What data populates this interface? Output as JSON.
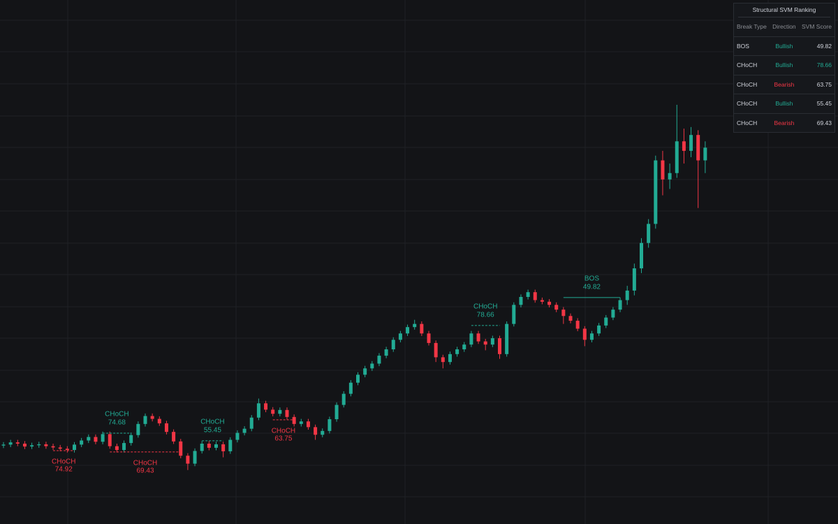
{
  "chart_data": {
    "type": "candlestick",
    "ylim": [
      1.5,
      166.5
    ],
    "up_color": "#22ab94",
    "down_color": "#f23645",
    "open": [
      26.2,
      26.5,
      27.2,
      26.8,
      25.9,
      26.3,
      26.6,
      26.0,
      25.6,
      25.2,
      24.8,
      26.5,
      27.8,
      28.9,
      27.4,
      29.8,
      26.0,
      24.8,
      27.0,
      29.5,
      33.0,
      35.5,
      34.6,
      33.2,
      30.5,
      27.5,
      23.0,
      20.5,
      24.5,
      26.8,
      25.5,
      26.6,
      24.4,
      28.0,
      30.2,
      31.5,
      35.0,
      39.5,
      37.5,
      36.2,
      37.4,
      35.2,
      33.0,
      33.8,
      32.0,
      29.6,
      30.8,
      34.5,
      39.0,
      42.5,
      46.0,
      48.5,
      50.5,
      52.0,
      54.5,
      56.5,
      59.5,
      61.5,
      63.5,
      64.5,
      61.5,
      58.5,
      54.0,
      52.5,
      55.0,
      56.5,
      58.0,
      61.5,
      59.0,
      58.0,
      60.0,
      55.0,
      64.5,
      70.5,
      73.0,
      74.5,
      72.0,
      71.5,
      70.5,
      69.0,
      67.0,
      65.5,
      63.0,
      59.5,
      61.5,
      64.0,
      66.5,
      69.0,
      72.0,
      75.0,
      82.0,
      90.0,
      96.0,
      116.0,
      110.0,
      112.0,
      122.0,
      119.0,
      124.0,
      116.0
    ],
    "high": [
      27.3,
      28.0,
      28.0,
      27.6,
      27.1,
      27.4,
      27.4,
      26.8,
      26.4,
      26.0,
      27.3,
      28.6,
      29.7,
      29.7,
      30.6,
      30.6,
      26.8,
      27.8,
      30.3,
      33.8,
      36.3,
      36.3,
      35.4,
      34.0,
      31.3,
      28.3,
      23.8,
      25.3,
      27.6,
      27.6,
      27.4,
      27.4,
      28.8,
      31.0,
      32.3,
      35.8,
      41.0,
      40.3,
      38.3,
      38.2,
      38.2,
      36.0,
      34.6,
      34.6,
      32.8,
      31.6,
      35.3,
      39.8,
      43.3,
      46.8,
      49.3,
      51.3,
      52.8,
      55.3,
      57.3,
      60.3,
      62.3,
      64.3,
      65.8,
      65.3,
      62.3,
      59.3,
      54.8,
      55.8,
      57.3,
      58.8,
      62.3,
      62.3,
      59.8,
      60.8,
      60.8,
      65.3,
      71.3,
      73.8,
      75.3,
      75.3,
      72.8,
      72.3,
      71.3,
      69.8,
      67.8,
      66.3,
      63.8,
      62.3,
      64.8,
      67.3,
      69.8,
      72.8,
      76.5,
      83.5,
      91.5,
      97.5,
      117.5,
      119.0,
      115.0,
      133.5,
      126.0,
      126.5,
      125.5,
      122.0
    ],
    "low": [
      25.4,
      25.7,
      26.0,
      25.1,
      25.1,
      25.5,
      25.2,
      24.8,
      24.4,
      24.0,
      24.0,
      25.7,
      27.0,
      26.6,
      26.6,
      25.2,
      24.0,
      24.0,
      26.2,
      28.7,
      32.2,
      33.8,
      32.4,
      29.7,
      26.7,
      22.2,
      18.5,
      19.7,
      23.7,
      24.7,
      24.7,
      22.5,
      23.6,
      27.2,
      29.4,
      30.7,
      34.2,
      36.7,
      35.4,
      35.4,
      34.4,
      32.2,
      32.2,
      31.2,
      28.0,
      28.8,
      30.0,
      33.7,
      38.2,
      41.7,
      45.2,
      47.7,
      49.7,
      51.2,
      53.7,
      55.7,
      58.7,
      60.7,
      62.7,
      60.7,
      57.7,
      52.5,
      50.5,
      51.7,
      54.2,
      55.7,
      57.2,
      58.2,
      56.2,
      57.2,
      53.5,
      54.2,
      63.7,
      69.7,
      72.2,
      71.2,
      70.7,
      69.7,
      68.2,
      64.5,
      64.7,
      62.2,
      57.5,
      58.7,
      60.7,
      63.2,
      65.7,
      68.2,
      70.5,
      73.5,
      80.5,
      88.5,
      94.5,
      105.0,
      107.0,
      110.5,
      115.0,
      117.0,
      101.0,
      112.0
    ],
    "close": [
      26.5,
      27.2,
      26.8,
      25.9,
      26.3,
      26.6,
      26.0,
      25.6,
      25.2,
      24.8,
      26.5,
      27.8,
      28.9,
      27.4,
      29.8,
      26.0,
      24.8,
      27.0,
      29.5,
      33.0,
      35.5,
      34.6,
      33.2,
      30.5,
      27.5,
      23.0,
      20.5,
      24.5,
      26.8,
      25.5,
      26.6,
      24.4,
      28.0,
      30.2,
      31.5,
      35.0,
      39.5,
      37.5,
      36.2,
      37.4,
      35.2,
      33.0,
      33.8,
      32.0,
      29.6,
      30.8,
      34.5,
      39.0,
      42.5,
      46.0,
      48.5,
      50.5,
      52.0,
      54.5,
      56.5,
      59.5,
      61.5,
      63.5,
      64.5,
      61.5,
      58.5,
      54.0,
      52.5,
      55.0,
      56.5,
      58.0,
      61.5,
      59.0,
      58.0,
      60.0,
      55.0,
      64.5,
      70.5,
      73.0,
      74.5,
      72.0,
      71.5,
      70.5,
      69.0,
      67.0,
      65.5,
      63.0,
      59.5,
      61.5,
      64.0,
      66.5,
      69.0,
      72.0,
      75.0,
      82.0,
      90.0,
      96.0,
      116.0,
      110.0,
      112.0,
      122.0,
      119.0,
      124.0,
      116.0,
      120.0
    ],
    "direction_colors": {
      "Bullish": "#22ab94",
      "Bearish": "#f23645"
    },
    "annotations": [
      {
        "kind": "CHoCH",
        "direction": "Bearish",
        "score": 74.92,
        "level": 24.6,
        "start": 7,
        "end": 10,
        "line_style": "dashed"
      },
      {
        "kind": "CHoCH",
        "direction": "Bullish",
        "score": 74.68,
        "level": 30.1,
        "start": 14,
        "end": 18,
        "line_style": "dashed"
      },
      {
        "kind": "CHoCH",
        "direction": "Bearish",
        "score": 69.43,
        "level": 24.2,
        "start": 15,
        "end": 25,
        "line_style": "dashed"
      },
      {
        "kind": "CHoCH",
        "direction": "Bullish",
        "score": 55.45,
        "level": 27.7,
        "start": 28,
        "end": 31,
        "line_style": "dashed"
      },
      {
        "kind": "CHoCH",
        "direction": "Bearish",
        "score": 63.75,
        "level": 34.3,
        "start": 38,
        "end": 41,
        "line_style": "dashed"
      },
      {
        "kind": "CHoCH",
        "direction": "Bullish",
        "score": 78.66,
        "level": 64.0,
        "start": 66,
        "end": 70,
        "line_style": "dashed"
      },
      {
        "kind": "BOS",
        "direction": "Bullish",
        "score": 49.82,
        "level": 72.8,
        "start": 79,
        "end": 87,
        "line_style": "solid"
      }
    ]
  },
  "ranking_table": {
    "title": "Structural SVM Ranking",
    "columns": [
      "Break Type",
      "Direction",
      "SVM Score"
    ],
    "rows": [
      [
        "BOS",
        "Bullish",
        49.82
      ],
      [
        "CHoCH",
        "Bullish",
        78.66
      ],
      [
        "CHoCH",
        "Bearish",
        63.75
      ],
      [
        "CHoCH",
        "Bullish",
        55.45
      ],
      [
        "CHoCH",
        "Bearish",
        69.43
      ]
    ]
  }
}
